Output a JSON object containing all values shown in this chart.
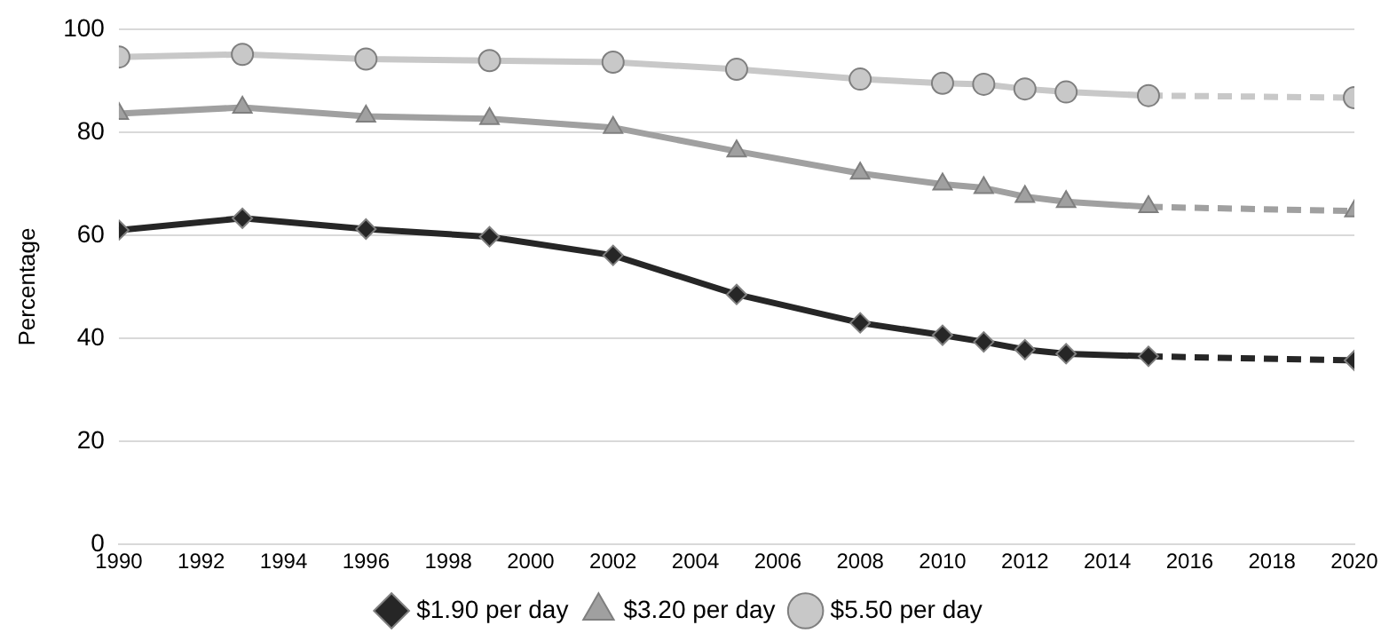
{
  "chart_data": {
    "type": "line",
    "ylabel": "Percentage",
    "xlim": [
      1990,
      2020
    ],
    "xticks": [
      1990,
      1992,
      1994,
      1996,
      1998,
      2000,
      2002,
      2004,
      2006,
      2008,
      2010,
      2012,
      2014,
      2016,
      2018,
      2020
    ],
    "ylim": [
      0,
      100
    ],
    "yticks": [
      0,
      20,
      40,
      60,
      80,
      100
    ],
    "grid": "y",
    "legend": "bottom",
    "line_style": "solid",
    "x": [
      1990,
      1993,
      1996,
      1999,
      2002,
      2005,
      2008,
      2010,
      2011,
      2012,
      2013,
      2015,
      2020
    ],
    "series": [
      {
        "name": "$1.90 per day",
        "color": "#262626",
        "marker": "diamond",
        "values": [
          61.0,
          63.3,
          61.2,
          59.7,
          56.1,
          48.5,
          43.0,
          40.6,
          39.3,
          37.8,
          37.0,
          36.5,
          null
        ]
      },
      {
        "name": "$3.20 per day",
        "color": "#a0a0a0",
        "marker": "triangle",
        "values": [
          83.6,
          84.8,
          83.1,
          82.6,
          80.9,
          76.3,
          72.0,
          69.9,
          69.2,
          67.5,
          66.5,
          65.5,
          null
        ]
      },
      {
        "name": "$5.50 per day",
        "color": "#c8c8c8",
        "marker": "circle",
        "values": [
          94.6,
          95.1,
          94.2,
          93.9,
          93.6,
          92.2,
          90.3,
          89.5,
          89.3,
          88.4,
          87.8,
          87.1,
          null
        ]
      },
      {
        "color": "#262626",
        "marker": "diamond",
        "line_style": "dashed",
        "values": [
          null,
          null,
          null,
          null,
          null,
          null,
          null,
          null,
          null,
          null,
          null,
          36.5,
          35.7
        ]
      },
      {
        "color": "#a0a0a0",
        "marker": "triangle",
        "line_style": "dashed",
        "values": [
          null,
          null,
          null,
          null,
          null,
          null,
          null,
          null,
          null,
          null,
          null,
          65.5,
          64.7
        ]
      },
      {
        "color": "#c8c8c8",
        "marker": "circle",
        "line_style": "dashed",
        "values": [
          null,
          null,
          null,
          null,
          null,
          null,
          null,
          null,
          null,
          null,
          null,
          87.1,
          86.7
        ]
      }
    ]
  }
}
